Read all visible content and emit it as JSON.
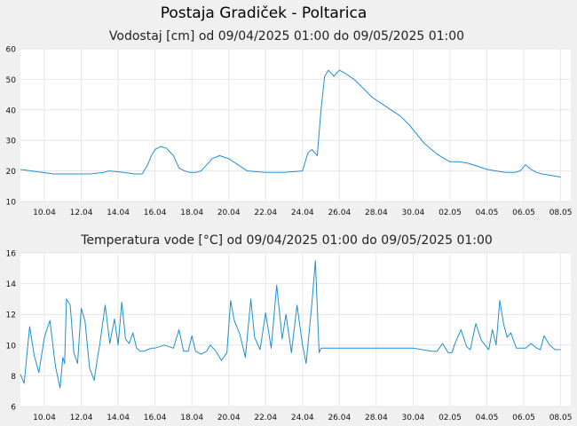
{
  "page": {
    "title": "Postaja Gradiček - Poltarica"
  },
  "chart_data": [
    {
      "type": "line",
      "title": "Vodostaj [cm] od 09/04/2025 01:00 do 09/05/2025 01:00",
      "xlabel": "",
      "ylabel": "",
      "ylim": [
        10,
        60
      ],
      "yticks": [
        10,
        20,
        30,
        40,
        50,
        60
      ],
      "xlim": [
        8.7,
        38.55
      ],
      "xticks": [
        {
          "x": 10,
          "label": "10.04"
        },
        {
          "x": 12,
          "label": "12.04"
        },
        {
          "x": 14,
          "label": "14.04"
        },
        {
          "x": 16,
          "label": "16.04"
        },
        {
          "x": 18,
          "label": "18.04"
        },
        {
          "x": 20,
          "label": "20.04"
        },
        {
          "x": 22,
          "label": "22.04"
        },
        {
          "x": 24,
          "label": "24.04"
        },
        {
          "x": 26,
          "label": "26.04"
        },
        {
          "x": 28,
          "label": "28.04"
        },
        {
          "x": 30,
          "label": "30.04"
        },
        {
          "x": 32,
          "label": "02.05"
        },
        {
          "x": 34,
          "label": "04.05"
        },
        {
          "x": 36,
          "label": "06.05"
        },
        {
          "x": 38,
          "label": "08.05"
        }
      ],
      "grid": true,
      "series": [
        {
          "color": "#1e90d0",
          "x": [
            8.7,
            9.3,
            9.9,
            10.5,
            11.5,
            12.5,
            13.2,
            13.5,
            14.3,
            14.9,
            15.3,
            15.6,
            15.8,
            16.0,
            16.3,
            16.6,
            17.0,
            17.3,
            17.6,
            17.9,
            18.2,
            18.5,
            18.8,
            19.1,
            19.5,
            20.0,
            21.0,
            22.0,
            23.0,
            24.0,
            24.3,
            24.5,
            24.8,
            25.0,
            25.2,
            25.4,
            25.7,
            26.0,
            26.3,
            26.8,
            27.3,
            27.8,
            28.3,
            28.8,
            29.3,
            29.8,
            30.2,
            30.6,
            31.0,
            31.3,
            31.7,
            32.0,
            32.5,
            33.0,
            33.5,
            34.0,
            34.5,
            35.0,
            35.5,
            35.8,
            36.1,
            36.4,
            36.7,
            37.0,
            37.5,
            38.0
          ],
          "y": [
            20.5,
            20,
            19.5,
            19,
            19,
            19,
            19.5,
            20,
            19.5,
            19,
            19,
            22,
            25,
            27,
            28,
            27.5,
            25,
            21,
            20,
            19.5,
            19.5,
            20,
            22,
            24,
            25,
            24,
            20,
            19.5,
            19.5,
            20,
            26,
            27,
            25,
            40,
            51,
            53,
            51,
            53,
            52,
            50,
            47,
            44,
            42,
            40,
            38,
            35,
            32,
            29,
            27,
            25.5,
            24,
            23,
            23,
            22.5,
            21.5,
            20.5,
            20,
            19.5,
            19.5,
            20,
            22,
            20.5,
            19.5,
            19,
            18.5,
            18
          ]
        }
      ]
    },
    {
      "type": "line",
      "title": "Temperatura vode [°C] od 09/04/2025 01:00 do 09/05/2025 01:00",
      "xlabel": "",
      "ylabel": "",
      "ylim": [
        6,
        16
      ],
      "yticks": [
        6,
        8,
        10,
        12,
        14,
        16
      ],
      "xlim": [
        8.7,
        38.55
      ],
      "xticks": [
        {
          "x": 10,
          "label": "10.04"
        },
        {
          "x": 12,
          "label": "12.04"
        },
        {
          "x": 14,
          "label": "14.04"
        },
        {
          "x": 16,
          "label": "16.04"
        },
        {
          "x": 18,
          "label": "18.04"
        },
        {
          "x": 20,
          "label": "20.04"
        },
        {
          "x": 22,
          "label": "22.04"
        },
        {
          "x": 24,
          "label": "24.04"
        },
        {
          "x": 26,
          "label": "26.04"
        },
        {
          "x": 28,
          "label": "28.04"
        },
        {
          "x": 30,
          "label": "30.04"
        },
        {
          "x": 32,
          "label": "02.05"
        },
        {
          "x": 34,
          "label": "04.05"
        },
        {
          "x": 36,
          "label": "06.05"
        },
        {
          "x": 38,
          "label": "08.05"
        }
      ],
      "grid": true,
      "series": [
        {
          "color": "#1e90d0",
          "x": [
            8.7,
            8.9,
            9.2,
            9.45,
            9.7,
            10.0,
            10.3,
            10.6,
            10.85,
            11.0,
            11.1,
            11.2,
            11.4,
            11.6,
            11.8,
            12.0,
            12.2,
            12.45,
            12.7,
            12.9,
            13.0,
            13.3,
            13.55,
            13.8,
            14.0,
            14.2,
            14.4,
            14.6,
            14.8,
            15.0,
            15.2,
            15.4,
            15.6,
            15.8,
            16.0,
            16.5,
            17.0,
            17.3,
            17.55,
            17.8,
            18.0,
            18.2,
            18.5,
            18.8,
            19.0,
            19.3,
            19.6,
            19.9,
            20.1,
            20.3,
            20.6,
            20.9,
            21.2,
            21.4,
            21.7,
            22.0,
            22.3,
            22.6,
            22.9,
            23.1,
            23.4,
            23.7,
            24.0,
            24.2,
            24.5,
            24.7,
            24.9,
            25.0,
            25.5,
            26.0,
            27.0,
            28.0,
            29.0,
            30.0,
            31.0,
            31.3,
            31.6,
            31.9,
            32.1,
            32.3,
            32.6,
            32.9,
            33.1,
            33.4,
            33.7,
            33.9,
            34.1,
            34.3,
            34.5,
            34.7,
            34.9,
            35.1,
            35.3,
            35.6,
            35.9,
            36.1,
            36.4,
            36.7,
            36.9,
            37.1,
            37.4,
            37.7,
            38.0
          ],
          "y": [
            8.1,
            7.5,
            11.2,
            9.3,
            8.2,
            10.5,
            11.6,
            8.6,
            7.2,
            9.2,
            8.8,
            13.0,
            12.6,
            9.5,
            8.8,
            12.4,
            11.6,
            8.5,
            7.7,
            9.3,
            10.0,
            12.6,
            10.1,
            11.7,
            10.0,
            12.8,
            10.4,
            10.1,
            10.8,
            9.8,
            9.6,
            9.6,
            9.7,
            9.8,
            9.8,
            10.0,
            9.8,
            11.0,
            9.6,
            9.6,
            10.6,
            9.6,
            9.4,
            9.6,
            10.0,
            9.6,
            9.0,
            9.5,
            12.9,
            11.6,
            10.7,
            9.2,
            13.0,
            10.5,
            9.7,
            12.1,
            9.8,
            13.9,
            10.4,
            12.0,
            9.5,
            12.6,
            10.0,
            8.8,
            12.6,
            15.5,
            9.5,
            9.8,
            9.8,
            9.8,
            9.8,
            9.8,
            9.8,
            9.8,
            9.6,
            9.6,
            10.1,
            9.5,
            9.5,
            10.2,
            11.0,
            9.9,
            9.7,
            11.4,
            10.3,
            10.0,
            9.7,
            11.0,
            10.0,
            12.9,
            11.4,
            10.5,
            10.8,
            9.8,
            9.8,
            9.8,
            10.1,
            9.8,
            9.7,
            10.6,
            10.0,
            9.7,
            9.7
          ]
        }
      ]
    }
  ]
}
